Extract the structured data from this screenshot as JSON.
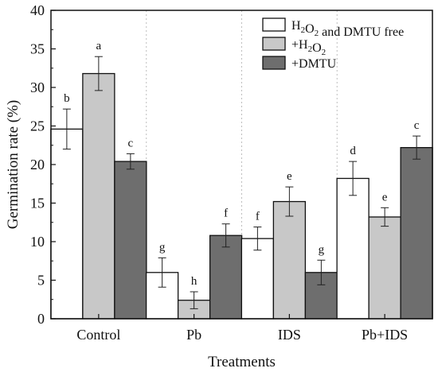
{
  "chart_data": {
    "type": "bar",
    "title": "",
    "xlabel": "Treatments",
    "ylabel": "Germination rate (%)",
    "ylim": [
      0,
      40
    ],
    "yticks": [
      0,
      5,
      10,
      15,
      20,
      25,
      30,
      35,
      40
    ],
    "categories": [
      "Control",
      "Pb",
      "IDS",
      "Pb+IDS"
    ],
    "grid": false,
    "group_separators": "dotted vertical lines between groups",
    "legend_position": "top-right",
    "series": [
      {
        "name": "H2O2 and DMTU free",
        "color": "#ffffff",
        "values": [
          24.6,
          6.0,
          10.4,
          18.2
        ],
        "errors": [
          2.6,
          1.9,
          1.5,
          2.2
        ],
        "letters": [
          "b",
          "g",
          "f",
          "d"
        ]
      },
      {
        "name": "+H2O2",
        "color": "#c8c8c8",
        "values": [
          31.8,
          2.4,
          15.2,
          13.2
        ],
        "errors": [
          2.2,
          1.1,
          1.9,
          1.2
        ],
        "letters": [
          "a",
          "h",
          "e",
          "e"
        ]
      },
      {
        "name": "+DMTU",
        "color": "#6e6e6e",
        "values": [
          20.4,
          10.8,
          6.0,
          22.2
        ],
        "errors": [
          1.0,
          1.5,
          1.6,
          1.5
        ],
        "letters": [
          "c",
          "f",
          "g",
          "c"
        ]
      }
    ]
  }
}
